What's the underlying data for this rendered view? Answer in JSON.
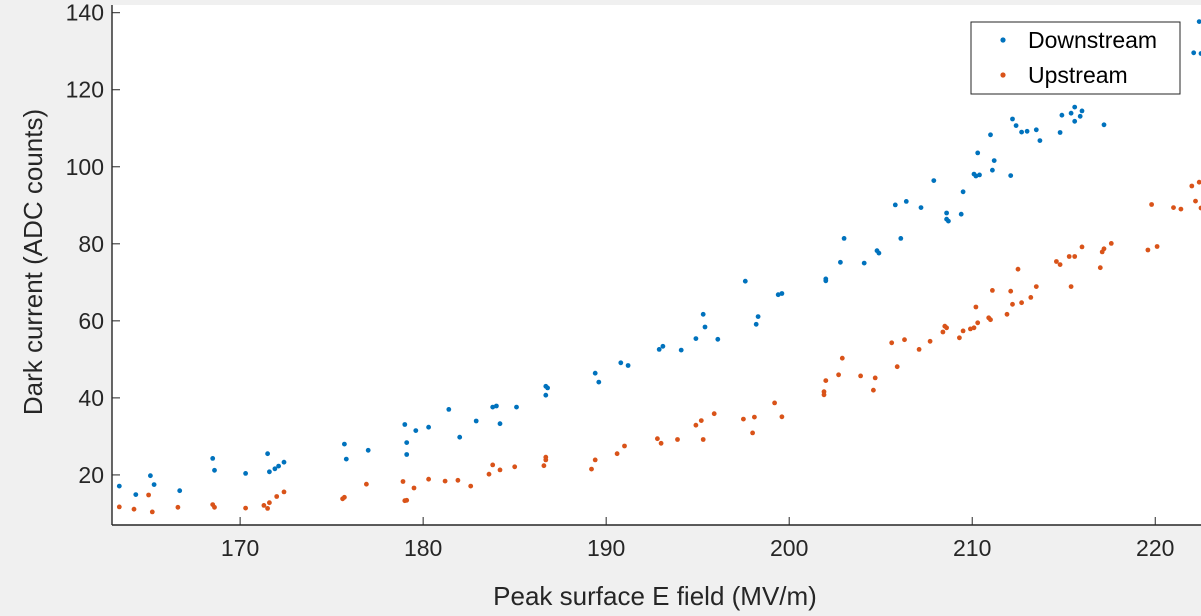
{
  "chart_data": {
    "type": "scatter",
    "xlabel": "Peak surface E field (MV/m)",
    "ylabel": "Dark current (ADC counts)",
    "xlim": [
      163,
      222.5
    ],
    "ylim": [
      7,
      142
    ],
    "xticks": [
      170,
      180,
      190,
      200,
      210,
      220
    ],
    "yticks": [
      20,
      40,
      60,
      80,
      100,
      120,
      140
    ],
    "grid": false,
    "legend_position": "top-right",
    "series": [
      {
        "name": "Downstream",
        "color": "#0072bd",
        "points": [
          [
            163.4,
            17.1
          ],
          [
            164.3,
            14.9
          ],
          [
            165.1,
            19.8
          ],
          [
            165.3,
            17.5
          ],
          [
            166.7,
            15.9
          ],
          [
            168.5,
            24.3
          ],
          [
            168.6,
            21.2
          ],
          [
            170.3,
            20.4
          ],
          [
            171.5,
            25.5
          ],
          [
            171.6,
            20.8
          ],
          [
            171.9,
            21.6
          ],
          [
            172.1,
            22.3
          ],
          [
            172.4,
            23.3
          ],
          [
            175.7,
            28.0
          ],
          [
            175.8,
            24.1
          ],
          [
            177.0,
            26.4
          ],
          [
            179.0,
            33.1
          ],
          [
            179.1,
            28.4
          ],
          [
            179.1,
            25.3
          ],
          [
            179.6,
            31.5
          ],
          [
            180.3,
            32.4
          ],
          [
            181.4,
            37.0
          ],
          [
            182.0,
            29.8
          ],
          [
            182.9,
            34.0
          ],
          [
            183.8,
            37.6
          ],
          [
            184.0,
            37.9
          ],
          [
            184.2,
            33.3
          ],
          [
            185.1,
            37.6
          ],
          [
            186.7,
            43.0
          ],
          [
            186.7,
            40.7
          ],
          [
            186.8,
            42.6
          ],
          [
            189.4,
            46.4
          ],
          [
            189.6,
            44.1
          ],
          [
            190.8,
            49.1
          ],
          [
            191.2,
            48.4
          ],
          [
            192.9,
            52.6
          ],
          [
            193.1,
            53.4
          ],
          [
            194.1,
            52.4
          ],
          [
            194.9,
            55.4
          ],
          [
            195.3,
            61.7
          ],
          [
            195.4,
            58.4
          ],
          [
            196.1,
            55.2
          ],
          [
            197.6,
            70.3
          ],
          [
            198.2,
            59.1
          ],
          [
            198.3,
            61.1
          ],
          [
            199.4,
            66.8
          ],
          [
            199.6,
            67.1
          ],
          [
            202.0,
            70.9
          ],
          [
            202.0,
            70.4
          ],
          [
            202.8,
            75.2
          ],
          [
            203.0,
            81.4
          ],
          [
            204.1,
            75.0
          ],
          [
            204.8,
            78.2
          ],
          [
            204.9,
            77.6
          ],
          [
            205.8,
            90.1
          ],
          [
            206.1,
            81.4
          ],
          [
            206.4,
            91.0
          ],
          [
            207.2,
            89.4
          ],
          [
            207.9,
            96.4
          ],
          [
            208.6,
            88.0
          ],
          [
            208.6,
            86.4
          ],
          [
            208.7,
            85.9
          ],
          [
            209.4,
            87.7
          ],
          [
            209.5,
            93.5
          ],
          [
            210.1,
            98.1
          ],
          [
            210.2,
            97.6
          ],
          [
            210.3,
            103.6
          ],
          [
            210.4,
            97.9
          ],
          [
            211.0,
            108.3
          ],
          [
            211.1,
            99.1
          ],
          [
            211.2,
            101.6
          ],
          [
            212.1,
            97.7
          ],
          [
            212.2,
            112.4
          ],
          [
            212.4,
            110.7
          ],
          [
            212.7,
            109.0
          ],
          [
            213.0,
            109.2
          ],
          [
            213.5,
            109.6
          ],
          [
            213.7,
            106.8
          ],
          [
            214.8,
            108.9
          ],
          [
            214.9,
            113.4
          ],
          [
            215.4,
            113.9
          ],
          [
            215.6,
            115.5
          ],
          [
            215.6,
            111.8
          ],
          [
            215.9,
            113.1
          ],
          [
            216.0,
            114.5
          ],
          [
            217.1,
            119.4
          ],
          [
            217.2,
            110.9
          ],
          [
            217.3,
            120.8
          ],
          [
            217.4,
            123.5
          ],
          [
            217.8,
            120.1
          ],
          [
            222.1,
            129.6
          ],
          [
            222.4,
            137.7
          ],
          [
            222.5,
            129.4
          ]
        ]
      },
      {
        "name": "Upstream",
        "color": "#d95319",
        "points": [
          [
            163.4,
            11.7
          ],
          [
            164.2,
            11.1
          ],
          [
            165.0,
            14.8
          ],
          [
            165.2,
            10.4
          ],
          [
            166.6,
            11.6
          ],
          [
            168.5,
            12.3
          ],
          [
            168.6,
            11.6
          ],
          [
            170.3,
            11.4
          ],
          [
            171.3,
            12.1
          ],
          [
            171.5,
            11.3
          ],
          [
            171.6,
            12.8
          ],
          [
            172.0,
            14.4
          ],
          [
            172.4,
            15.6
          ],
          [
            175.6,
            13.8
          ],
          [
            175.7,
            14.2
          ],
          [
            176.9,
            17.6
          ],
          [
            178.9,
            18.3
          ],
          [
            179.0,
            13.3
          ],
          [
            179.1,
            13.4
          ],
          [
            179.5,
            16.6
          ],
          [
            180.3,
            18.9
          ],
          [
            181.2,
            18.4
          ],
          [
            181.9,
            18.6
          ],
          [
            182.6,
            17.1
          ],
          [
            183.6,
            20.2
          ],
          [
            183.8,
            22.6
          ],
          [
            184.2,
            21.3
          ],
          [
            185.0,
            22.1
          ],
          [
            186.6,
            22.4
          ],
          [
            186.7,
            23.9
          ],
          [
            186.7,
            24.6
          ],
          [
            189.2,
            21.5
          ],
          [
            189.4,
            23.9
          ],
          [
            190.6,
            25.5
          ],
          [
            191.0,
            27.5
          ],
          [
            192.8,
            29.4
          ],
          [
            193.0,
            28.2
          ],
          [
            193.9,
            29.2
          ],
          [
            194.9,
            32.9
          ],
          [
            195.2,
            34.1
          ],
          [
            195.3,
            29.2
          ],
          [
            195.9,
            35.9
          ],
          [
            197.5,
            34.5
          ],
          [
            198.0,
            30.9
          ],
          [
            198.1,
            35.0
          ],
          [
            199.2,
            38.7
          ],
          [
            199.6,
            35.1
          ],
          [
            201.9,
            41.6
          ],
          [
            201.9,
            40.8
          ],
          [
            202.0,
            44.5
          ],
          [
            202.7,
            46.0
          ],
          [
            202.9,
            50.3
          ],
          [
            203.9,
            45.7
          ],
          [
            204.6,
            42.0
          ],
          [
            204.7,
            45.2
          ],
          [
            205.6,
            54.3
          ],
          [
            205.9,
            48.1
          ],
          [
            206.3,
            55.1
          ],
          [
            207.1,
            52.6
          ],
          [
            207.7,
            54.7
          ],
          [
            208.4,
            57.1
          ],
          [
            208.5,
            58.6
          ],
          [
            208.6,
            58.2
          ],
          [
            209.3,
            55.6
          ],
          [
            209.5,
            57.4
          ],
          [
            209.9,
            57.9
          ],
          [
            210.1,
            58.2
          ],
          [
            210.2,
            63.6
          ],
          [
            210.3,
            59.5
          ],
          [
            210.9,
            60.8
          ],
          [
            211.0,
            60.3
          ],
          [
            211.1,
            67.9
          ],
          [
            211.9,
            61.7
          ],
          [
            212.1,
            67.7
          ],
          [
            212.2,
            64.3
          ],
          [
            212.5,
            73.4
          ],
          [
            212.7,
            64.7
          ],
          [
            213.2,
            66.1
          ],
          [
            213.5,
            68.9
          ],
          [
            214.6,
            75.4
          ],
          [
            214.8,
            74.6
          ],
          [
            215.3,
            76.7
          ],
          [
            215.4,
            68.9
          ],
          [
            215.6,
            76.7
          ],
          [
            216.0,
            79.2
          ],
          [
            217.0,
            73.8
          ],
          [
            217.1,
            77.9
          ],
          [
            217.2,
            78.7
          ],
          [
            217.6,
            80.1
          ],
          [
            219.6,
            78.4
          ],
          [
            219.8,
            90.2
          ],
          [
            220.1,
            79.3
          ],
          [
            221.0,
            89.4
          ],
          [
            221.4,
            89.0
          ],
          [
            222.0,
            95.0
          ],
          [
            222.2,
            91.1
          ],
          [
            222.4,
            96.0
          ],
          [
            222.5,
            89.3
          ]
        ]
      }
    ]
  }
}
